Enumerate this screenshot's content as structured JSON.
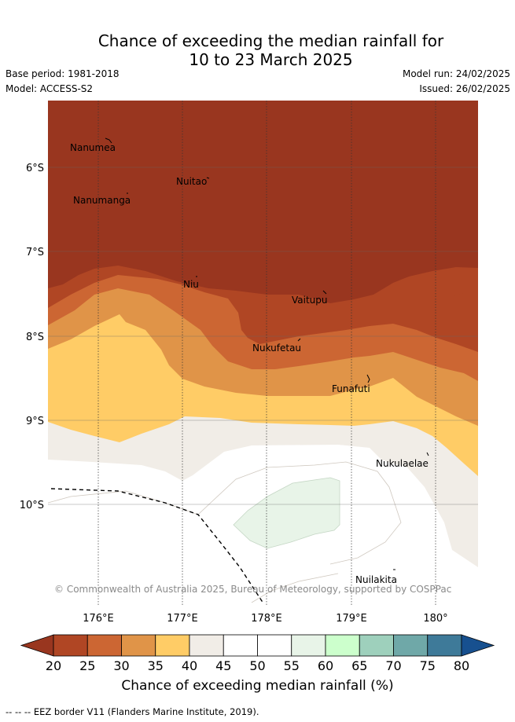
{
  "header": {
    "title_line1": "Chance of exceeding the median rainfall for",
    "title_line2": "10 to 23 March 2025",
    "base_period": "Base period: 1981-2018",
    "model": "Model: ACCESS-S2",
    "model_run": "Model run: 24/02/2025",
    "issued": "Issued: 26/02/2025"
  },
  "map": {
    "lat_labels": [
      "6°S",
      "7°S",
      "8°S",
      "9°S",
      "10°S"
    ],
    "lon_labels": [
      "176°E",
      "177°E",
      "178°E",
      "179°E",
      "180°"
    ],
    "places": [
      "Nanumea",
      "Nuitao",
      "Nanumanga",
      "Niu",
      "Vaitupu",
      "Nukufetau",
      "Funafuti",
      "Nukulaelae",
      "Nuilakita"
    ],
    "copyright": "© Commonwealth of Australia 2025, Bureau of Meteorology, supported by COSPPac"
  },
  "colorbar": {
    "ticks": [
      "20",
      "25",
      "30",
      "35",
      "40",
      "45",
      "50",
      "55",
      "60",
      "65",
      "70",
      "75",
      "80"
    ],
    "colors": [
      "#b04624",
      "#cc6633",
      "#e09448",
      "#ffcc66",
      "#f1ede7",
      "#ffffff",
      "#ffffff",
      "#e8f4e8",
      "#ccffcc",
      "#9ed0bc",
      "#6fa8a8",
      "#3e7a99"
    ],
    "under_color": "#99361f",
    "over_color": "#17508f",
    "title": "Chance of exceeding median rainfall (%)"
  },
  "footer": {
    "eez_note": "--  --  -- EEZ border V11 (Flanders Marine Institute, 2019)."
  }
}
